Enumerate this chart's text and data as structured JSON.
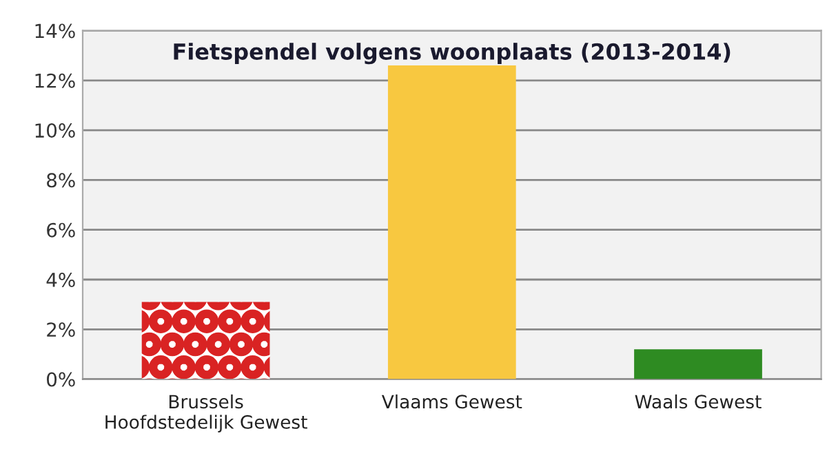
{
  "chart_data": {
    "type": "bar",
    "title": "Fietspendel volgens woonplaats (2013-2014)",
    "categories": [
      "Brussels\nHoofdstedelijk Gewest",
      "Vlaams Gewest",
      "Waals Gewest"
    ],
    "values": [
      3.1,
      12.6,
      1.2
    ],
    "colors": [
      "#d92323",
      "#f8c840",
      "#2e8b22"
    ],
    "ylim": [
      0,
      14
    ],
    "yticks": [
      {
        "value": 0,
        "label": "0%"
      },
      {
        "value": 2,
        "label": "2%"
      },
      {
        "value": 4,
        "label": "4%"
      },
      {
        "value": 6,
        "label": "6%"
      },
      {
        "value": 8,
        "label": "8%"
      },
      {
        "value": 10,
        "label": "10%"
      },
      {
        "value": 12,
        "label": "12%"
      },
      {
        "value": 14,
        "label": "14%"
      }
    ],
    "grid": "y",
    "legend": false
  }
}
